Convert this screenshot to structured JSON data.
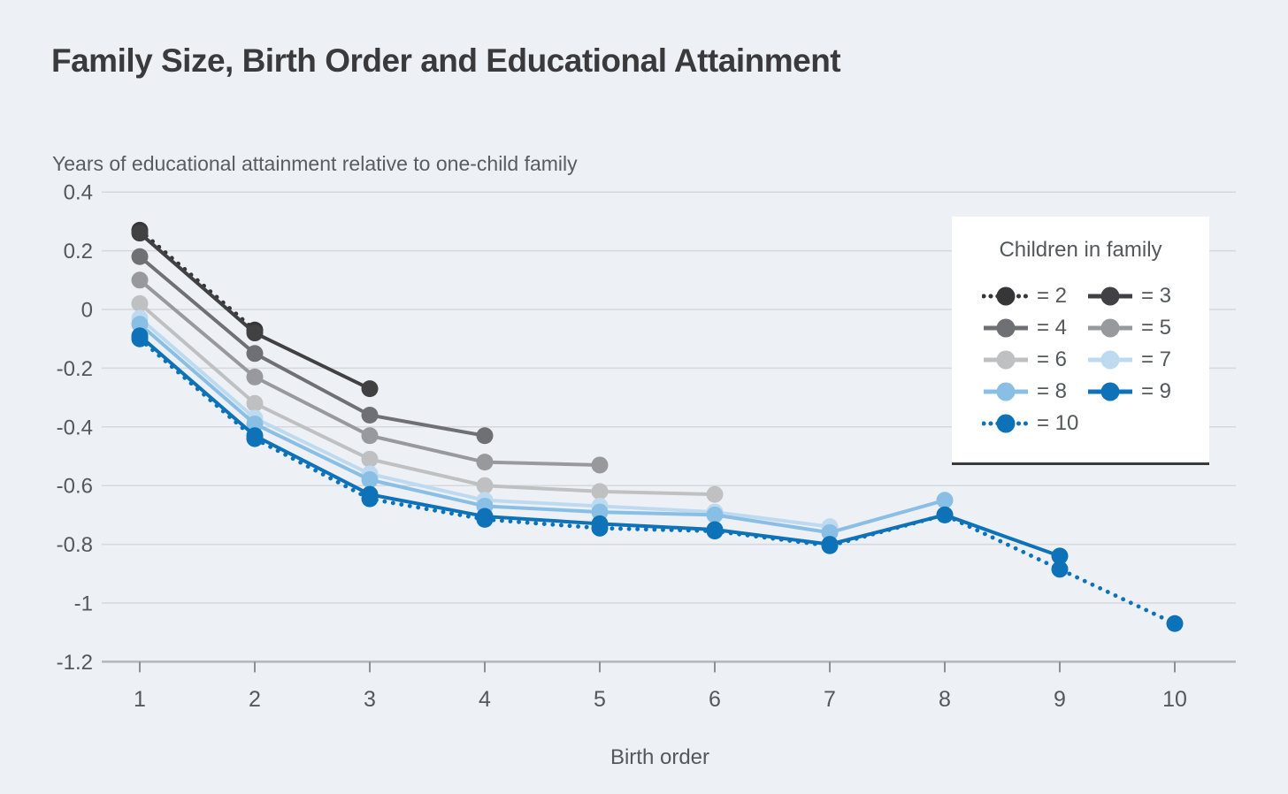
{
  "colors": {
    "background": "#edf1f6",
    "gridline": "#d5d9de",
    "axis_line": "#b3b7bc",
    "tick_mark": "#8b9094",
    "title_text": "#3a3a3c",
    "muted_text": "#54575b",
    "legend_background": "#ffffff",
    "legend_border": "#3a3a3c"
  },
  "chart_data": {
    "type": "line",
    "title": "Family Size, Birth Order and Educational Attainment",
    "ylabel": "Years of educational attainment relative to one-child family",
    "xlabel": "Birth order",
    "x_ticks": [
      1,
      2,
      3,
      4,
      5,
      6,
      7,
      8,
      9,
      10
    ],
    "x_tick_labels": [
      "1",
      "2",
      "3",
      "4",
      "5",
      "6",
      "7",
      "8",
      "9",
      "10"
    ],
    "y_ticks": [
      0.4,
      0.2,
      0,
      -0.2,
      -0.4,
      -0.6,
      -0.8,
      -1,
      -1.2
    ],
    "y_tick_labels": [
      "0.4",
      "0.2",
      "0",
      "-0.2",
      "-0.4",
      "-0.6",
      "-0.8",
      "-1",
      "-1.2"
    ],
    "ylim": [
      -1.2,
      0.4
    ],
    "xlim": [
      0.65,
      10.5
    ],
    "grid": "horizontal",
    "legend": {
      "title": "Children in family",
      "position": "upper-right",
      "columns": 2
    },
    "series": [
      {
        "label": "= 2",
        "children_in_family": 2,
        "line_style": "dotted",
        "color": "#363639",
        "x": [
          1,
          2
        ],
        "y": [
          0.27,
          -0.07
        ]
      },
      {
        "label": "= 3",
        "children_in_family": 3,
        "line_style": "solid",
        "color": "#414144",
        "x": [
          1,
          2,
          3
        ],
        "y": [
          0.26,
          -0.08,
          -0.27
        ]
      },
      {
        "label": "= 4",
        "children_in_family": 4,
        "line_style": "solid",
        "color": "#6f7073",
        "x": [
          1,
          2,
          3,
          4
        ],
        "y": [
          0.18,
          -0.15,
          -0.36,
          -0.43
        ]
      },
      {
        "label": "= 5",
        "children_in_family": 5,
        "line_style": "solid",
        "color": "#98999c",
        "x": [
          1,
          2,
          3,
          4,
          5
        ],
        "y": [
          0.1,
          -0.23,
          -0.43,
          -0.52,
          -0.53
        ]
      },
      {
        "label": "= 6",
        "children_in_family": 6,
        "line_style": "solid",
        "color": "#bfc0c2",
        "x": [
          1,
          2,
          3,
          4,
          5,
          6
        ],
        "y": [
          0.02,
          -0.32,
          -0.51,
          -0.6,
          -0.62,
          -0.63
        ]
      },
      {
        "label": "= 7",
        "children_in_family": 7,
        "line_style": "solid",
        "color": "#bedaf0",
        "x": [
          1,
          2,
          3,
          4,
          5,
          6,
          7
        ],
        "y": [
          -0.03,
          -0.37,
          -0.56,
          -0.65,
          -0.67,
          -0.69,
          -0.74
        ]
      },
      {
        "label": "= 8",
        "children_in_family": 8,
        "line_style": "solid",
        "color": "#89bee5",
        "x": [
          1,
          2,
          3,
          4,
          5,
          6,
          7,
          8
        ],
        "y": [
          -0.05,
          -0.39,
          -0.58,
          -0.67,
          -0.69,
          -0.7,
          -0.76,
          -0.65
        ]
      },
      {
        "label": "= 9",
        "children_in_family": 9,
        "line_style": "solid",
        "color": "#0e72b9",
        "x": [
          1,
          2,
          3,
          4,
          5,
          6,
          7,
          8,
          9
        ],
        "y": [
          -0.09,
          -0.43,
          -0.63,
          -0.705,
          -0.73,
          -0.75,
          -0.8,
          -0.7,
          -0.84
        ]
      },
      {
        "label": "= 10",
        "children_in_family": 10,
        "line_style": "dotted",
        "color": "#0e72b9",
        "x": [
          1,
          2,
          3,
          4,
          5,
          6,
          7,
          8,
          9,
          10
        ],
        "y": [
          -0.1,
          -0.44,
          -0.645,
          -0.715,
          -0.745,
          -0.755,
          -0.805,
          -0.7,
          -0.885,
          -1.07
        ]
      }
    ]
  }
}
